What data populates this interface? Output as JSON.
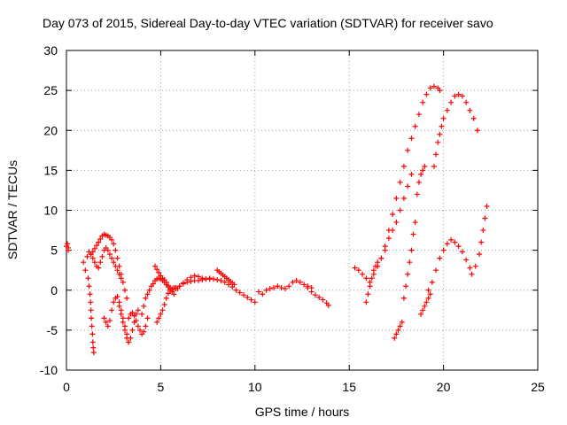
{
  "chart_data": {
    "type": "scatter",
    "title": "Day 073 of 2015, Sidereal Day-to-day VTEC variation (SDTVAR) for receiver savo",
    "xlabel": "GPS time / hours",
    "ylabel": "SDTVAR / TECUs",
    "xlim": [
      0,
      25
    ],
    "ylim": [
      -10,
      30
    ],
    "xticks": [
      0,
      5,
      10,
      15,
      20,
      25
    ],
    "yticks": [
      -10,
      -5,
      0,
      5,
      10,
      15,
      20,
      25,
      30
    ],
    "grid": true,
    "marker": "plus",
    "color": "#ff0000",
    "series": [
      {
        "x": [
          0.0,
          0.05,
          0.1,
          0.1
        ],
        "y": [
          5.5,
          5.8,
          5.3,
          5.0
        ]
      },
      {
        "x": [
          0.9,
          1.0,
          1.1,
          1.2,
          1.3
        ],
        "y": [
          3.5,
          2.5,
          4.2,
          4.8,
          4.5
        ]
      },
      {
        "x": [
          1.15,
          1.2,
          1.25,
          1.28,
          1.3,
          1.32,
          1.35,
          1.38,
          1.4,
          1.42,
          1.45
        ],
        "y": [
          1.5,
          0.5,
          -0.5,
          -1.5,
          -2.5,
          -3.5,
          -4.5,
          -5.5,
          -6.5,
          -7.2,
          -7.8
        ]
      },
      {
        "x": [
          1.3,
          1.4,
          1.5,
          1.6,
          1.7,
          1.8,
          1.9,
          2.0,
          2.1,
          2.2,
          2.3,
          2.4,
          2.5,
          2.6,
          2.7,
          2.8,
          2.9,
          3.0,
          3.1,
          3.2
        ],
        "y": [
          4.5,
          4.8,
          5.2,
          5.6,
          6.0,
          6.4,
          6.8,
          7.0,
          6.9,
          6.8,
          6.6,
          6.3,
          5.8,
          5.0,
          4.0,
          3.0,
          2.0,
          1.0,
          0.0,
          -1.0
        ]
      },
      {
        "x": [
          1.4,
          1.5,
          1.6,
          1.7,
          1.8,
          1.9,
          2.0,
          2.1,
          2.2,
          2.3,
          2.4,
          2.5,
          2.6,
          2.7,
          2.8,
          2.9
        ],
        "y": [
          4.0,
          3.5,
          3.0,
          2.8,
          3.5,
          4.2,
          5.0,
          5.3,
          5.0,
          4.5,
          4.0,
          3.5,
          3.0,
          2.5,
          2.0,
          1.5
        ]
      },
      {
        "x": [
          2.0,
          2.1,
          2.2,
          2.3,
          2.4,
          2.5,
          2.6,
          2.7,
          2.8,
          2.9,
          3.0,
          3.1,
          3.2,
          3.3
        ],
        "y": [
          -3.5,
          -4.0,
          -4.5,
          -3.8,
          -2.5,
          -1.5,
          -1.0,
          -0.8,
          -1.5,
          -2.5,
          -3.5,
          -4.5,
          -5.5,
          -6.5
        ]
      },
      {
        "x": [
          2.8,
          2.9,
          3.0,
          3.1,
          3.2,
          3.3,
          3.4,
          3.5,
          3.6,
          3.7,
          3.8
        ],
        "y": [
          -2.0,
          -3.0,
          -4.0,
          -5.0,
          -6.0,
          -6.5,
          -6.0,
          -5.0,
          -4.0,
          -3.0,
          -2.5
        ]
      },
      {
        "x": [
          3.3,
          3.4,
          3.5,
          3.6,
          3.7,
          3.8,
          3.9,
          4.0,
          4.1,
          4.2,
          4.3
        ],
        "y": [
          -3.5,
          -3.0,
          -2.8,
          -3.2,
          -3.8,
          -4.5,
          -5.0,
          -5.5,
          -5.2,
          -4.5,
          -3.5
        ]
      },
      {
        "x": [
          4.0,
          4.1,
          4.2,
          4.3,
          4.4,
          4.5,
          4.6,
          4.7,
          4.8,
          4.9,
          5.0,
          5.1,
          5.2,
          5.3,
          5.4,
          5.5
        ],
        "y": [
          -3.0,
          -2.0,
          -1.0,
          -0.5,
          0.0,
          0.5,
          0.8,
          1.2,
          1.4,
          1.5,
          1.4,
          1.2,
          1.0,
          0.7,
          0.4,
          0.2
        ]
      },
      {
        "x": [
          4.7,
          4.8,
          4.9,
          5.0,
          5.1,
          5.2,
          5.3,
          5.4,
          5.5,
          5.6,
          5.7
        ],
        "y": [
          3.0,
          2.6,
          2.2,
          1.8,
          1.5,
          1.3,
          1.0,
          0.6,
          0.2,
          -0.2,
          -0.5
        ]
      },
      {
        "x": [
          4.8,
          4.9,
          5.0,
          5.1,
          5.2,
          5.3,
          5.4,
          5.5,
          5.6,
          5.7,
          5.8,
          5.9
        ],
        "y": [
          -4.0,
          -3.5,
          -3.0,
          -2.5,
          -1.8,
          -1.0,
          -0.4,
          0.0,
          0.2,
          0.3,
          0.3,
          0.2
        ]
      },
      {
        "x": [
          5.6,
          5.8,
          6.0,
          6.2,
          6.4,
          6.6,
          6.8,
          7.0,
          7.2,
          7.4,
          7.6,
          7.8,
          8.0,
          8.2,
          8.4,
          8.6,
          8.8,
          9.0,
          9.2,
          9.4,
          9.6,
          9.8,
          10.0
        ],
        "y": [
          0.0,
          0.2,
          0.5,
          0.8,
          1.0,
          1.1,
          1.2,
          1.2,
          1.3,
          1.4,
          1.4,
          1.4,
          1.3,
          1.2,
          1.0,
          0.7,
          0.4,
          0.0,
          -0.3,
          -0.6,
          -0.9,
          -1.2,
          -1.5
        ]
      },
      {
        "x": [
          5.8,
          6.0,
          6.2,
          6.4,
          6.6,
          6.8,
          7.0,
          7.2,
          7.4,
          7.6
        ],
        "y": [
          0.2,
          0.5,
          0.9,
          1.3,
          1.6,
          1.8,
          1.7,
          1.5,
          1.4,
          1.5
        ]
      },
      {
        "x": [
          8.0,
          8.1,
          8.2,
          8.3,
          8.4,
          8.5,
          8.6,
          8.7,
          8.8,
          8.9
        ],
        "y": [
          2.5,
          2.3,
          2.1,
          1.9,
          1.7,
          1.5,
          1.3,
          1.1,
          0.9,
          0.7
        ]
      },
      {
        "x": [
          10.2,
          10.4,
          10.6,
          10.8,
          11.0,
          11.2,
          11.4,
          11.6,
          11.8,
          12.0,
          12.2,
          12.4,
          12.6,
          12.8,
          13.0
        ],
        "y": [
          -0.2,
          -0.5,
          0.0,
          0.2,
          0.3,
          0.5,
          0.3,
          0.2,
          0.5,
          1.0,
          1.2,
          1.0,
          0.7,
          0.5,
          0.3
        ]
      },
      {
        "x": [
          12.8,
          13.0,
          13.2,
          13.4,
          13.6,
          13.8,
          13.9
        ],
        "y": [
          0.3,
          -0.2,
          -0.6,
          -0.9,
          -1.2,
          -1.6,
          -1.9
        ]
      },
      {
        "x": [
          15.3,
          15.5,
          15.7,
          15.9,
          16.1,
          16.3,
          16.5,
          16.7,
          16.9,
          17.1,
          17.3,
          17.5,
          17.7,
          17.9,
          18.1,
          18.3,
          18.5,
          18.7,
          18.9,
          19.1,
          19.3,
          19.5,
          19.7,
          19.8
        ],
        "y": [
          2.8,
          2.5,
          2.0,
          1.5,
          1.0,
          2.0,
          3.0,
          4.0,
          5.5,
          7.5,
          9.5,
          11.5,
          13.5,
          15.5,
          17.5,
          19.0,
          20.5,
          22.0,
          23.5,
          24.5,
          25.3,
          25.5,
          25.3,
          25.0
        ]
      },
      {
        "x": [
          15.9,
          16.0,
          16.1,
          16.2,
          16.3,
          16.4,
          16.5
        ],
        "y": [
          -1.5,
          -0.5,
          0.5,
          1.5,
          2.5,
          3.0,
          3.5
        ]
      },
      {
        "x": [
          16.5,
          16.7,
          16.9,
          17.1,
          17.3,
          17.5,
          17.7,
          17.9,
          18.1,
          18.3
        ],
        "y": [
          3.0,
          4.0,
          5.0,
          6.5,
          7.5,
          8.5,
          10.0,
          11.5,
          13.0,
          14.5
        ]
      },
      {
        "x": [
          17.4,
          17.5,
          17.6,
          17.7,
          17.8
        ],
        "y": [
          -6.0,
          -5.5,
          -5.0,
          -4.5,
          -4.0
        ]
      },
      {
        "x": [
          17.9,
          18.0,
          18.1,
          18.2,
          18.3,
          18.4,
          18.5
        ],
        "y": [
          -1.0,
          0.5,
          2.0,
          3.5,
          5.0,
          7.0,
          8.5
        ]
      },
      {
        "x": [
          18.6,
          18.7,
          18.8,
          18.9,
          19.0
        ],
        "y": [
          12.0,
          13.5,
          14.5,
          15.0,
          15.5
        ]
      },
      {
        "x": [
          18.8,
          18.9,
          19.0,
          19.1,
          19.2,
          19.3
        ],
        "y": [
          -3.0,
          -2.5,
          -2.0,
          -1.5,
          -1.0,
          -0.5
        ]
      },
      {
        "x": [
          19.2,
          19.4,
          19.6,
          19.8,
          20.0,
          20.2,
          20.4,
          20.6,
          20.8,
          21.0,
          21.2,
          21.4
        ],
        "y": [
          0.0,
          1.0,
          2.5,
          4.0,
          5.0,
          5.8,
          6.3,
          6.0,
          5.5,
          4.8,
          3.8,
          2.8
        ]
      },
      {
        "x": [
          19.5,
          19.6,
          19.7,
          19.8,
          19.9,
          20.0,
          20.2,
          20.4,
          20.6,
          20.8,
          21.0,
          21.2,
          21.4,
          21.6,
          21.8
        ],
        "y": [
          15.5,
          17.0,
          18.5,
          19.5,
          20.5,
          21.5,
          22.5,
          23.5,
          24.3,
          24.5,
          24.3,
          23.5,
          22.5,
          21.5,
          20.0
        ]
      },
      {
        "x": [
          21.5,
          21.7,
          21.9,
          22.0,
          22.1,
          22.2,
          22.3
        ],
        "y": [
          2.0,
          3.0,
          4.5,
          6.0,
          7.5,
          9.0,
          10.5
        ]
      }
    ]
  }
}
